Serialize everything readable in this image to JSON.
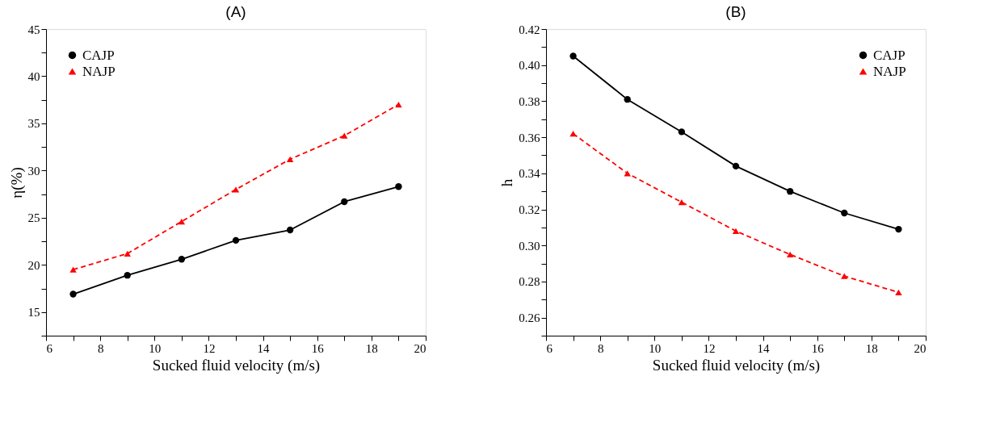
{
  "chart_data": [
    {
      "type": "line",
      "title": "(A)",
      "xlabel": "Sucked fluid velocity (m/s)",
      "ylabel": "η(%)",
      "x": [
        7,
        9,
        11,
        13,
        15,
        17,
        19
      ],
      "series": [
        {
          "name": "CAJP",
          "color": "#000000",
          "marker": "circle",
          "line_style": "solid",
          "values": [
            16.9,
            18.9,
            20.6,
            22.6,
            23.7,
            26.7,
            28.3
          ]
        },
        {
          "name": "NAJP",
          "color": "#ff0000",
          "marker": "triangle",
          "line_style": "dashed",
          "values": [
            19.5,
            21.2,
            24.6,
            28.0,
            31.2,
            33.7,
            37.0
          ]
        }
      ],
      "xlim": [
        6,
        20
      ],
      "ylim": [
        12.5,
        45
      ],
      "xticks": [
        6,
        {
          "value": 7,
          "label": null
        },
        8,
        {
          "value": 9,
          "label": null
        },
        10,
        {
          "value": 11,
          "label": null
        },
        12,
        {
          "value": 13,
          "label": null
        },
        14,
        {
          "value": 15,
          "label": null
        },
        16,
        {
          "value": 17,
          "label": null
        },
        18,
        {
          "value": 19,
          "label": null
        },
        20
      ],
      "yticks": [
        {
          "value": 12.5,
          "label": null
        },
        15,
        {
          "value": 17.5,
          "label": null
        },
        20,
        {
          "value": 22.5,
          "label": null
        },
        25,
        {
          "value": 27.5,
          "label": null
        },
        30,
        {
          "value": 32.5,
          "label": null
        },
        35,
        {
          "value": 37.5,
          "label": null
        },
        40,
        {
          "value": 42.5,
          "label": null
        },
        45
      ],
      "grid": false,
      "legend": "top left"
    },
    {
      "type": "line",
      "title": "(B)",
      "xlabel": "Sucked fluid velocity (m/s)",
      "ylabel": "h",
      "x": [
        7,
        9,
        11,
        13,
        15,
        17,
        19
      ],
      "series": [
        {
          "name": "CAJP",
          "color": "#000000",
          "marker": "circle",
          "line_style": "solid",
          "values": [
            0.405,
            0.381,
            0.363,
            0.344,
            0.33,
            0.318,
            0.309
          ]
        },
        {
          "name": "NAJP",
          "color": "#ff0000",
          "marker": "triangle",
          "line_style": "dashed",
          "values": [
            0.362,
            0.34,
            0.324,
            0.308,
            0.295,
            0.283,
            0.274
          ]
        }
      ],
      "xlim": [
        6,
        20
      ],
      "ylim": [
        0.25,
        0.42
      ],
      "xticks": [
        6,
        {
          "value": 7,
          "label": null
        },
        8,
        {
          "value": 9,
          "label": null
        },
        10,
        {
          "value": 11,
          "label": null
        },
        12,
        {
          "value": 13,
          "label": null
        },
        14,
        {
          "value": 15,
          "label": null
        },
        16,
        {
          "value": 17,
          "label": null
        },
        18,
        {
          "value": 19,
          "label": null
        },
        20
      ],
      "yticks": [
        {
          "value": 0.25,
          "label": null
        },
        {
          "value": 0.26,
          "label": "0.26"
        },
        {
          "value": 0.27,
          "label": null
        },
        {
          "value": 0.28,
          "label": "0.28"
        },
        {
          "value": 0.29,
          "label": null
        },
        {
          "value": 0.3,
          "label": "0.30"
        },
        {
          "value": 0.31,
          "label": null
        },
        {
          "value": 0.32,
          "label": "0.32"
        },
        {
          "value": 0.33,
          "label": null
        },
        {
          "value": 0.34,
          "label": "0.34"
        },
        {
          "value": 0.35,
          "label": null
        },
        {
          "value": 0.36,
          "label": "0.36"
        },
        {
          "value": 0.37,
          "label": null
        },
        {
          "value": 0.38,
          "label": "0.38"
        },
        {
          "value": 0.39,
          "label": null
        },
        {
          "value": 0.4,
          "label": "0.40"
        },
        {
          "value": 0.41,
          "label": null
        },
        {
          "value": 0.42,
          "label": "0.42"
        }
      ],
      "grid": false,
      "legend": "top right"
    }
  ]
}
